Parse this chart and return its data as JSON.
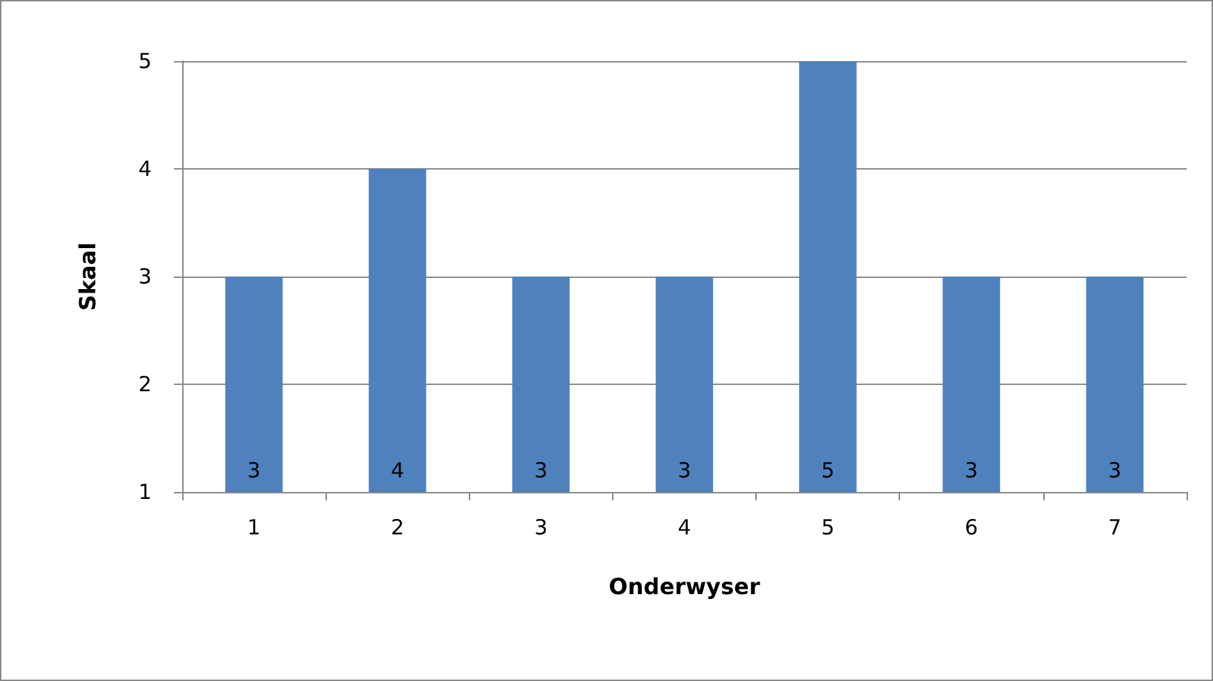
{
  "chart_data": {
    "type": "bar",
    "xlabel": "Onderwyser",
    "ylabel": "Skaal",
    "categories": [
      "1",
      "2",
      "3",
      "4",
      "5",
      "6",
      "7"
    ],
    "values": [
      3,
      4,
      3,
      3,
      5,
      3,
      3
    ],
    "color": "#4f81bd",
    "ylim": [
      1,
      5
    ],
    "yticks": [
      1,
      2,
      3,
      4,
      5
    ],
    "grid": "y",
    "data_labels": true
  }
}
